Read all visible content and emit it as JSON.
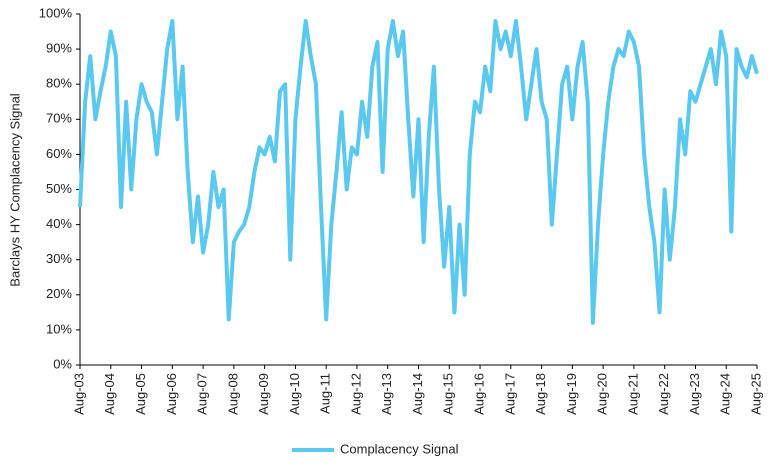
{
  "chart_data": {
    "type": "line",
    "y_label": "Barclays HY Complacency Signal",
    "categories": [
      "Aug-03",
      null,
      null,
      null,
      null,
      null,
      "Aug-04",
      null,
      null,
      null,
      null,
      null,
      "Aug-05",
      null,
      null,
      null,
      null,
      null,
      "Aug-06",
      null,
      null,
      null,
      null,
      null,
      "Aug-07",
      null,
      null,
      null,
      null,
      null,
      "Aug-08",
      null,
      null,
      null,
      null,
      null,
      "Aug-09",
      null,
      null,
      null,
      null,
      null,
      "Aug-10",
      null,
      null,
      null,
      null,
      null,
      "Aug-11",
      null,
      null,
      null,
      null,
      null,
      "Aug-12",
      null,
      null,
      null,
      null,
      null,
      "Aug-13",
      null,
      null,
      null,
      null,
      null,
      "Aug-14",
      null,
      null,
      null,
      null,
      null,
      "Aug-15",
      null,
      null,
      null,
      null,
      null,
      "Aug-16",
      null,
      null,
      null,
      null,
      null,
      "Aug-17",
      null,
      null,
      null,
      null,
      null,
      "Aug-18",
      null,
      null,
      null,
      null,
      null,
      "Aug-19",
      null,
      null,
      null,
      null,
      null,
      "Aug-20",
      null,
      null,
      null,
      null,
      null,
      "Aug-21",
      null,
      null,
      null,
      null,
      null,
      "Aug-22",
      null,
      null,
      null,
      null,
      null,
      "Aug-23",
      null,
      null,
      null,
      null,
      null,
      "Aug-24",
      null,
      null,
      null,
      null,
      null,
      "Aug-25"
    ],
    "series": [
      {
        "name": "Complacency Signal",
        "color": "#5bc8f0",
        "values": [
          45,
          75,
          88,
          70,
          78,
          85,
          95,
          88,
          45,
          75,
          50,
          70,
          80,
          75,
          72,
          60,
          75,
          90,
          98,
          70,
          85,
          55,
          35,
          48,
          32,
          40,
          55,
          45,
          50,
          13,
          35,
          38,
          40,
          45,
          55,
          62,
          60,
          65,
          58,
          78,
          80,
          30,
          70,
          85,
          98,
          88,
          80,
          45,
          13,
          40,
          55,
          72,
          50,
          62,
          60,
          75,
          65,
          85,
          92,
          55,
          90,
          98,
          88,
          95,
          70,
          48,
          70,
          35,
          65,
          85,
          50,
          28,
          45,
          15,
          40,
          20,
          60,
          75,
          72,
          85,
          78,
          98,
          90,
          95,
          88,
          98,
          85,
          70,
          80,
          90,
          75,
          70,
          40,
          60,
          80,
          85,
          70,
          85,
          92,
          75,
          12,
          40,
          60,
          75,
          85,
          90,
          88,
          95,
          92,
          85,
          60,
          45,
          35,
          15,
          50,
          30,
          45,
          70,
          60,
          78,
          75,
          80,
          85,
          90,
          80,
          95,
          88,
          38,
          90,
          85,
          82,
          88,
          83
        ]
      }
    ],
    "ylim": [
      0,
      100
    ],
    "yticks": [
      {
        "value": 0,
        "label": "0%"
      },
      {
        "value": 10,
        "label": "10%"
      },
      {
        "value": 20,
        "label": "20%"
      },
      {
        "value": 30,
        "label": "30%"
      },
      {
        "value": 40,
        "label": "40%"
      },
      {
        "value": 50,
        "label": "50%"
      },
      {
        "value": 60,
        "label": "60%"
      },
      {
        "value": 70,
        "label": "70%"
      },
      {
        "value": 80,
        "label": "80%"
      },
      {
        "value": 90,
        "label": "90%"
      },
      {
        "value": 100,
        "label": "100%"
      }
    ],
    "grid": false,
    "legend": "bottom"
  }
}
